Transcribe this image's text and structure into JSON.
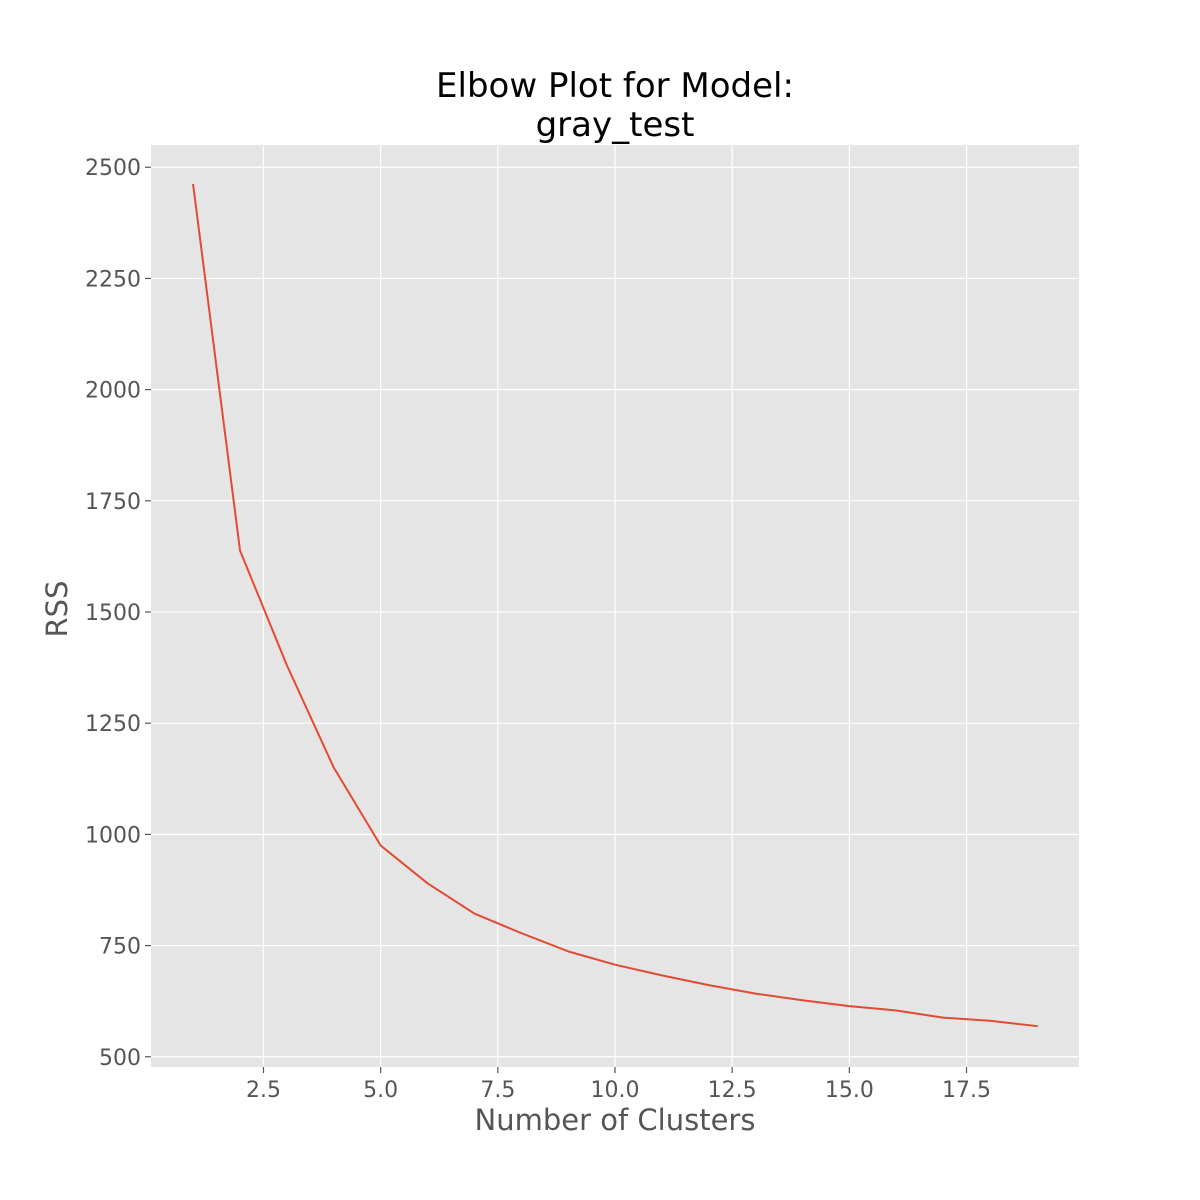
{
  "chart_data": {
    "type": "line",
    "title_lines": [
      "Elbow Plot for Model:",
      "gray_test"
    ],
    "xlabel": "Number of Clusters",
    "ylabel": "RSS",
    "xlim": [
      0.1,
      19.9
    ],
    "ylim": [
      477,
      2550
    ],
    "x_ticks": [
      2.5,
      5.0,
      7.5,
      10.0,
      12.5,
      15.0,
      17.5
    ],
    "x_tick_labels": [
      "2.5",
      "5.0",
      "7.5",
      "10.0",
      "12.5",
      "15.0",
      "17.5"
    ],
    "y_ticks": [
      500,
      750,
      1000,
      1250,
      1500,
      1750,
      2000,
      2250,
      2500
    ],
    "y_tick_labels": [
      "500",
      "750",
      "1000",
      "1250",
      "1500",
      "1750",
      "2000",
      "2250",
      "2500"
    ],
    "grid": true,
    "background_color": "#e5e5e5",
    "grid_color": "#ffffff",
    "series": [
      {
        "color": "#e24a33",
        "x": [
          1,
          2,
          3,
          4,
          5,
          6,
          7,
          8,
          9,
          10,
          11,
          12,
          13,
          14,
          15,
          16,
          17,
          18,
          19
        ],
        "y": [
          2460,
          1638,
          1380,
          1150,
          975,
          890,
          822,
          778,
          737,
          707,
          683,
          661,
          642,
          627,
          614,
          604,
          588,
          581,
          569
        ]
      }
    ]
  }
}
